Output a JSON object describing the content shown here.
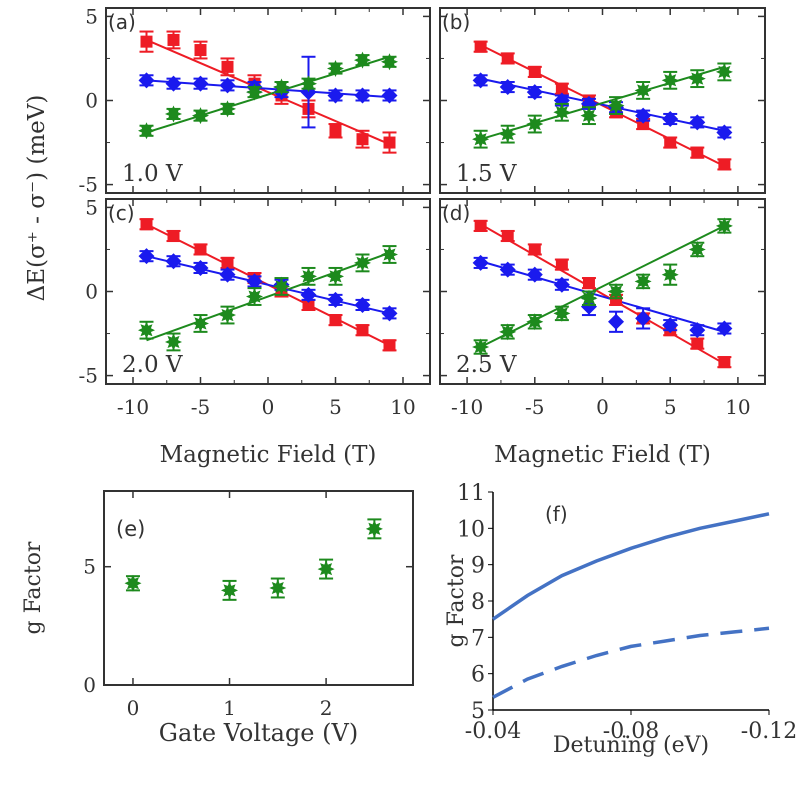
{
  "figure": {
    "shared_ylabel": "ΔE(σ⁺ - σ⁻) (meV)"
  },
  "colors": {
    "red": "#ee1c25",
    "blue": "#1a1aee",
    "green": "#1d8a1d",
    "line_blue": "#4472c4",
    "axis": "#333333"
  },
  "chart_data": [
    {
      "id": "a",
      "type": "scatter",
      "panel_label": "(a)",
      "annotation": "1.0 V",
      "xlabel": "",
      "ylabel": "",
      "xlim": [
        -12,
        12
      ],
      "ylim": [
        -5.5,
        5.5
      ],
      "xticks": [
        -10,
        -5,
        0,
        5,
        10
      ],
      "yticks": [
        -5,
        0,
        5
      ],
      "x": [
        -9,
        -7,
        -5,
        -3,
        -1,
        1,
        3,
        5,
        7,
        9
      ],
      "series": [
        {
          "name": "red",
          "marker": "square",
          "values": [
            3.5,
            3.6,
            3.0,
            2.0,
            1.0,
            0.3,
            -0.5,
            -1.8,
            -2.3,
            -2.5
          ],
          "errors": [
            0.6,
            0.5,
            0.5,
            0.5,
            0.5,
            0.5,
            0.5,
            0.4,
            0.5,
            0.6
          ],
          "fit": [
            3.6,
            -2.6
          ]
        },
        {
          "name": "blue",
          "marker": "diamond",
          "values": [
            1.2,
            1.0,
            1.0,
            0.9,
            0.8,
            0.5,
            0.5,
            0.3,
            0.3,
            0.3
          ],
          "errors": [
            0.3,
            0.3,
            0.3,
            0.3,
            0.3,
            0.3,
            2.1,
            0.3,
            0.3,
            0.3
          ],
          "fit": [
            1.2,
            0.2
          ]
        },
        {
          "name": "green",
          "marker": "star",
          "values": [
            -1.8,
            -0.8,
            -0.9,
            -0.5,
            0.5,
            0.8,
            1.0,
            1.9,
            2.4,
            2.3
          ],
          "errors": [
            0.3,
            0.3,
            0.3,
            0.3,
            0.3,
            0.3,
            0.3,
            0.3,
            0.3,
            0.3
          ],
          "fit": [
            -1.9,
            2.6
          ]
        }
      ]
    },
    {
      "id": "b",
      "type": "scatter",
      "panel_label": "(b)",
      "annotation": "1.5 V",
      "xlabel": "",
      "ylabel": "",
      "xlim": [
        -12,
        12
      ],
      "ylim": [
        -5.5,
        5.5
      ],
      "xticks": [
        -10,
        -5,
        0,
        5,
        10
      ],
      "yticks": [
        -5,
        0,
        5
      ],
      "x": [
        -9,
        -7,
        -5,
        -3,
        -1,
        1,
        3,
        5,
        7,
        9
      ],
      "series": [
        {
          "name": "red",
          "marker": "square",
          "values": [
            3.2,
            2.5,
            1.7,
            0.7,
            0.0,
            -0.7,
            -1.4,
            -2.5,
            -3.1,
            -3.8
          ],
          "errors": [
            0.3,
            0.3,
            0.3,
            0.3,
            0.3,
            0.3,
            0.3,
            0.3,
            0.3,
            0.3
          ],
          "fit": [
            3.3,
            -3.9
          ]
        },
        {
          "name": "blue",
          "marker": "diamond",
          "values": [
            1.2,
            0.8,
            0.5,
            0.0,
            -0.2,
            -0.4,
            -0.9,
            -1.1,
            -1.3,
            -1.9
          ],
          "errors": [
            0.3,
            0.3,
            0.3,
            0.3,
            0.3,
            0.3,
            0.3,
            0.3,
            0.3,
            0.3
          ],
          "fit": [
            1.3,
            -1.8
          ]
        },
        {
          "name": "green",
          "marker": "star",
          "values": [
            -2.3,
            -2.0,
            -1.4,
            -0.7,
            -0.9,
            -0.3,
            0.6,
            1.2,
            1.3,
            1.7
          ],
          "errors": [
            0.5,
            0.5,
            0.5,
            0.5,
            0.5,
            0.5,
            0.5,
            0.5,
            0.5,
            0.5
          ],
          "fit": [
            -2.3,
            2.0
          ]
        }
      ]
    },
    {
      "id": "c",
      "type": "scatter",
      "panel_label": "(c)",
      "annotation": "2.0 V",
      "xlabel": "Magnetic Field (T)",
      "ylabel": "",
      "xlim": [
        -12,
        12
      ],
      "ylim": [
        -5.5,
        5.5
      ],
      "xticks": [
        -10,
        -5,
        0,
        5,
        10
      ],
      "yticks": [
        -5,
        0,
        5
      ],
      "x": [
        -9,
        -7,
        -5,
        -3,
        -1,
        1,
        3,
        5,
        7,
        9
      ],
      "series": [
        {
          "name": "red",
          "marker": "square",
          "values": [
            4.0,
            3.3,
            2.5,
            1.7,
            0.8,
            0.0,
            -0.8,
            -1.7,
            -2.3,
            -3.2
          ],
          "errors": [
            0.3,
            0.3,
            0.3,
            0.3,
            0.3,
            0.3,
            0.3,
            0.3,
            0.3,
            0.3
          ],
          "fit": [
            4.0,
            -3.2
          ]
        },
        {
          "name": "blue",
          "marker": "diamond",
          "values": [
            2.1,
            1.8,
            1.4,
            1.0,
            0.6,
            0.4,
            -0.2,
            -0.5,
            -0.8,
            -1.3
          ],
          "errors": [
            0.3,
            0.3,
            0.3,
            0.3,
            0.3,
            0.3,
            0.3,
            0.3,
            0.3,
            0.3
          ],
          "fit": [
            2.1,
            -1.3
          ]
        },
        {
          "name": "green",
          "marker": "star",
          "values": [
            -2.3,
            -3.0,
            -1.9,
            -1.4,
            -0.3,
            0.3,
            0.9,
            0.9,
            1.7,
            2.2
          ],
          "errors": [
            0.5,
            0.5,
            0.5,
            0.5,
            0.5,
            0.5,
            0.5,
            0.5,
            0.5,
            0.5
          ],
          "fit": [
            -2.9,
            2.3
          ]
        }
      ]
    },
    {
      "id": "d",
      "type": "scatter",
      "panel_label": "(d)",
      "annotation": "2.5 V",
      "xlabel": "Magnetic Field (T)",
      "ylabel": "",
      "xlim": [
        -12,
        12
      ],
      "ylim": [
        -5.5,
        5.5
      ],
      "xticks": [
        -10,
        -5,
        0,
        5,
        10
      ],
      "yticks": [
        -5,
        0,
        5
      ],
      "x": [
        -9,
        -7,
        -5,
        -3,
        -1,
        1,
        3,
        5,
        7,
        9
      ],
      "series": [
        {
          "name": "red",
          "marker": "square",
          "values": [
            3.9,
            3.3,
            2.5,
            1.6,
            0.5,
            -0.5,
            -1.6,
            -2.3,
            -3.1,
            -4.2
          ],
          "errors": [
            0.3,
            0.3,
            0.3,
            0.3,
            0.3,
            0.3,
            0.3,
            0.3,
            0.3,
            0.3
          ],
          "fit": [
            4.0,
            -4.3
          ]
        },
        {
          "name": "blue",
          "marker": "diamond",
          "values": [
            1.7,
            1.3,
            1.0,
            0.4,
            -0.9,
            -1.8,
            -1.6,
            -2.0,
            -2.3,
            -2.2
          ],
          "errors": [
            0.3,
            0.3,
            0.3,
            0.3,
            0.5,
            0.6,
            0.6,
            0.3,
            0.3,
            0.3
          ],
          "fit": [
            1.8,
            -2.4
          ]
        },
        {
          "name": "green",
          "marker": "star",
          "values": [
            -3.3,
            -2.4,
            -1.8,
            -1.3,
            -0.4,
            0.0,
            0.6,
            1.0,
            2.5,
            3.9
          ],
          "errors": [
            0.4,
            0.4,
            0.4,
            0.4,
            0.4,
            0.4,
            0.4,
            0.6,
            0.4,
            0.4
          ],
          "fit": [
            -3.3,
            3.9
          ]
        }
      ]
    },
    {
      "id": "e",
      "type": "scatter",
      "panel_label": "(e)",
      "annotation": "",
      "xlabel": "Gate Voltage (V)",
      "ylabel": "g Factor",
      "xlim": [
        -0.3,
        2.9
      ],
      "ylim": [
        0,
        8.2
      ],
      "xticks": [
        0,
        1,
        2
      ],
      "yticks": [
        0,
        5
      ],
      "series": [
        {
          "name": "g factor",
          "marker": "star",
          "x": [
            0,
            1.0,
            1.5,
            2.0,
            2.5
          ],
          "values": [
            4.3,
            4.0,
            4.1,
            4.9,
            6.6
          ],
          "errors": [
            0.3,
            0.4,
            0.4,
            0.4,
            0.4
          ]
        }
      ]
    },
    {
      "id": "f",
      "type": "line",
      "panel_label": "(f)",
      "annotation": "",
      "xlabel": "Detuning (eV)",
      "ylabel": "g Factor",
      "xlim": [
        -0.04,
        -0.12
      ],
      "ylim": [
        5,
        11
      ],
      "xticks": [
        -0.04,
        -0.08,
        -0.12
      ],
      "yticks": [
        5,
        6,
        7,
        8,
        9,
        10,
        11
      ],
      "xtick_labels": [
        "-0.04",
        "-0.08",
        "-0.12"
      ],
      "series": [
        {
          "name": "solid",
          "style": "solid",
          "x": [
            -0.04,
            -0.05,
            -0.06,
            -0.07,
            -0.08,
            -0.09,
            -0.1,
            -0.11,
            -0.12
          ],
          "values": [
            7.5,
            8.15,
            8.7,
            9.1,
            9.45,
            9.75,
            10.0,
            10.2,
            10.4
          ]
        },
        {
          "name": "dashed",
          "style": "dashed",
          "x": [
            -0.04,
            -0.05,
            -0.06,
            -0.07,
            -0.08,
            -0.09,
            -0.1,
            -0.11,
            -0.12
          ],
          "values": [
            5.35,
            5.85,
            6.2,
            6.5,
            6.75,
            6.9,
            7.05,
            7.15,
            7.25
          ]
        }
      ]
    }
  ]
}
